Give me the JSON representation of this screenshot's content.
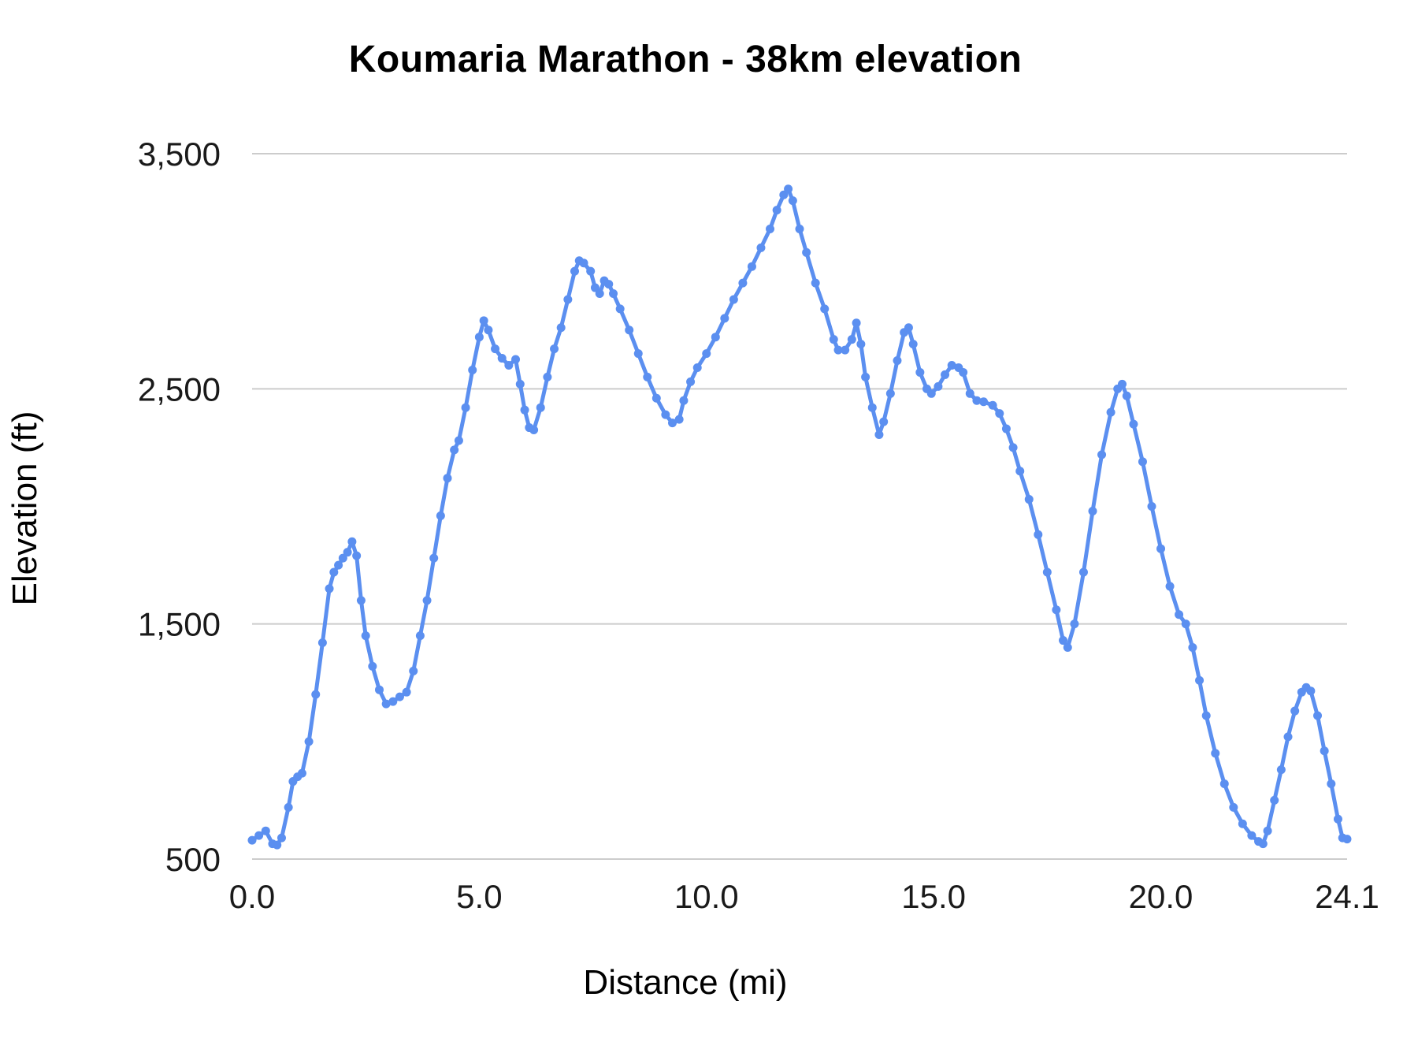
{
  "chart_data": {
    "type": "line",
    "title": "Koumaria Marathon - 38km elevation",
    "xlabel": "Distance (mi)",
    "ylabel": "Elevation (ft)",
    "xlim": [
      0,
      24.1
    ],
    "ylim": [
      500,
      3500
    ],
    "x_ticks": [
      0.0,
      5.0,
      10.0,
      15.0,
      20.0,
      24.1
    ],
    "x_tick_labels": [
      "0.0",
      "5.0",
      "10.0",
      "15.0",
      "20.0",
      "24.1"
    ],
    "y_ticks": [
      500,
      1500,
      2500,
      3500
    ],
    "y_tick_labels": [
      "500",
      "1,500",
      "2,500",
      "3,500"
    ],
    "grid": "horizontal",
    "legend": "none",
    "series_color": "#5b8ff0",
    "grid_color": "#cccccc",
    "text_color": "#1a1a1a",
    "series": [
      {
        "name": "Elevation",
        "points": [
          [
            0.0,
            580
          ],
          [
            0.15,
            600
          ],
          [
            0.3,
            620
          ],
          [
            0.45,
            565
          ],
          [
            0.55,
            560
          ],
          [
            0.65,
            590
          ],
          [
            0.8,
            720
          ],
          [
            0.9,
            830
          ],
          [
            1.0,
            850
          ],
          [
            1.1,
            865
          ],
          [
            1.25,
            1000
          ],
          [
            1.4,
            1200
          ],
          [
            1.55,
            1420
          ],
          [
            1.7,
            1650
          ],
          [
            1.8,
            1720
          ],
          [
            1.9,
            1750
          ],
          [
            2.0,
            1780
          ],
          [
            2.1,
            1805
          ],
          [
            2.2,
            1850
          ],
          [
            2.3,
            1790
          ],
          [
            2.4,
            1600
          ],
          [
            2.5,
            1450
          ],
          [
            2.65,
            1320
          ],
          [
            2.8,
            1220
          ],
          [
            2.95,
            1160
          ],
          [
            3.1,
            1170
          ],
          [
            3.25,
            1190
          ],
          [
            3.4,
            1210
          ],
          [
            3.55,
            1300
          ],
          [
            3.7,
            1450
          ],
          [
            3.85,
            1600
          ],
          [
            4.0,
            1780
          ],
          [
            4.15,
            1960
          ],
          [
            4.3,
            2120
          ],
          [
            4.45,
            2240
          ],
          [
            4.55,
            2280
          ],
          [
            4.7,
            2420
          ],
          [
            4.85,
            2580
          ],
          [
            5.0,
            2720
          ],
          [
            5.1,
            2790
          ],
          [
            5.2,
            2750
          ],
          [
            5.35,
            2670
          ],
          [
            5.5,
            2630
          ],
          [
            5.65,
            2600
          ],
          [
            5.8,
            2625
          ],
          [
            5.9,
            2520
          ],
          [
            6.0,
            2410
          ],
          [
            6.1,
            2335
          ],
          [
            6.2,
            2325
          ],
          [
            6.35,
            2420
          ],
          [
            6.5,
            2550
          ],
          [
            6.65,
            2670
          ],
          [
            6.8,
            2760
          ],
          [
            6.95,
            2880
          ],
          [
            7.1,
            3000
          ],
          [
            7.2,
            3045
          ],
          [
            7.3,
            3035
          ],
          [
            7.45,
            3000
          ],
          [
            7.55,
            2930
          ],
          [
            7.65,
            2905
          ],
          [
            7.75,
            2960
          ],
          [
            7.85,
            2945
          ],
          [
            7.95,
            2905
          ],
          [
            8.1,
            2840
          ],
          [
            8.3,
            2750
          ],
          [
            8.5,
            2650
          ],
          [
            8.7,
            2550
          ],
          [
            8.9,
            2460
          ],
          [
            9.1,
            2390
          ],
          [
            9.25,
            2355
          ],
          [
            9.4,
            2370
          ],
          [
            9.5,
            2450
          ],
          [
            9.65,
            2530
          ],
          [
            9.8,
            2590
          ],
          [
            10.0,
            2650
          ],
          [
            10.2,
            2720
          ],
          [
            10.4,
            2800
          ],
          [
            10.6,
            2880
          ],
          [
            10.8,
            2950
          ],
          [
            11.0,
            3020
          ],
          [
            11.2,
            3100
          ],
          [
            11.4,
            3180
          ],
          [
            11.55,
            3260
          ],
          [
            11.7,
            3325
          ],
          [
            11.8,
            3350
          ],
          [
            11.9,
            3300
          ],
          [
            12.05,
            3180
          ],
          [
            12.2,
            3080
          ],
          [
            12.4,
            2950
          ],
          [
            12.6,
            2840
          ],
          [
            12.8,
            2710
          ],
          [
            12.9,
            2665
          ],
          [
            13.05,
            2665
          ],
          [
            13.2,
            2710
          ],
          [
            13.3,
            2780
          ],
          [
            13.4,
            2690
          ],
          [
            13.5,
            2550
          ],
          [
            13.65,
            2420
          ],
          [
            13.8,
            2305
          ],
          [
            13.9,
            2360
          ],
          [
            14.05,
            2480
          ],
          [
            14.2,
            2620
          ],
          [
            14.35,
            2740
          ],
          [
            14.45,
            2760
          ],
          [
            14.55,
            2690
          ],
          [
            14.7,
            2570
          ],
          [
            14.85,
            2500
          ],
          [
            14.95,
            2480
          ],
          [
            15.1,
            2510
          ],
          [
            15.25,
            2560
          ],
          [
            15.4,
            2600
          ],
          [
            15.55,
            2590
          ],
          [
            15.65,
            2570
          ],
          [
            15.8,
            2480
          ],
          [
            15.95,
            2450
          ],
          [
            16.1,
            2445
          ],
          [
            16.3,
            2430
          ],
          [
            16.45,
            2395
          ],
          [
            16.6,
            2330
          ],
          [
            16.75,
            2250
          ],
          [
            16.9,
            2150
          ],
          [
            17.1,
            2030
          ],
          [
            17.3,
            1880
          ],
          [
            17.5,
            1720
          ],
          [
            17.7,
            1560
          ],
          [
            17.85,
            1430
          ],
          [
            17.95,
            1400
          ],
          [
            18.1,
            1500
          ],
          [
            18.3,
            1720
          ],
          [
            18.5,
            1980
          ],
          [
            18.7,
            2220
          ],
          [
            18.9,
            2400
          ],
          [
            19.05,
            2500
          ],
          [
            19.15,
            2520
          ],
          [
            19.25,
            2470
          ],
          [
            19.4,
            2350
          ],
          [
            19.6,
            2190
          ],
          [
            19.8,
            2000
          ],
          [
            20.0,
            1820
          ],
          [
            20.2,
            1660
          ],
          [
            20.4,
            1540
          ],
          [
            20.55,
            1500
          ],
          [
            20.7,
            1400
          ],
          [
            20.85,
            1260
          ],
          [
            21.0,
            1110
          ],
          [
            21.2,
            950
          ],
          [
            21.4,
            820
          ],
          [
            21.6,
            720
          ],
          [
            21.8,
            650
          ],
          [
            22.0,
            600
          ],
          [
            22.15,
            575
          ],
          [
            22.25,
            565
          ],
          [
            22.35,
            620
          ],
          [
            22.5,
            750
          ],
          [
            22.65,
            880
          ],
          [
            22.8,
            1020
          ],
          [
            22.95,
            1130
          ],
          [
            23.1,
            1210
          ],
          [
            23.2,
            1230
          ],
          [
            23.3,
            1215
          ],
          [
            23.45,
            1110
          ],
          [
            23.6,
            960
          ],
          [
            23.75,
            820
          ],
          [
            23.9,
            670
          ],
          [
            24.0,
            590
          ],
          [
            24.1,
            585
          ]
        ]
      }
    ]
  }
}
